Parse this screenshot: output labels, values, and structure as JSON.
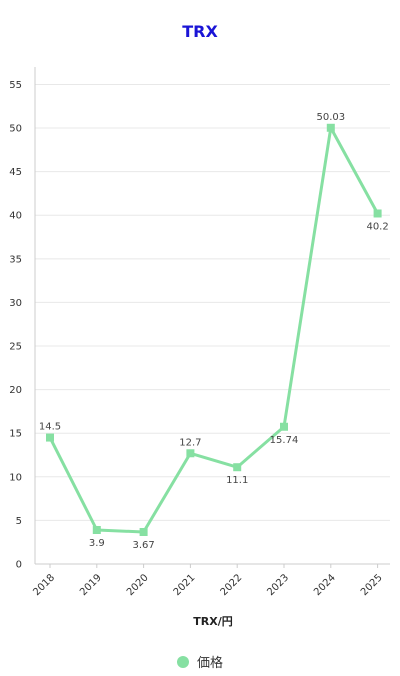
{
  "chart_data": {
    "type": "line",
    "title": "TRX",
    "xlabel": "TRX/円",
    "ylabel": "",
    "categories": [
      "2018",
      "2019",
      "2020",
      "2021",
      "2022",
      "2023",
      "2024",
      "2025"
    ],
    "series": [
      {
        "name": "価格",
        "values": [
          14.5,
          3.9,
          3.67,
          12.7,
          11.1,
          15.74,
          50.03,
          40.2
        ],
        "labels": [
          "14.5",
          "3.9",
          "3.67",
          "12.7",
          "11.1",
          "15.74",
          "50.03",
          "40.2"
        ],
        "color": "#86e0a2"
      }
    ],
    "ylim": [
      0,
      57
    ],
    "yticks": [
      0,
      5,
      10,
      15,
      20,
      25,
      30,
      35,
      40,
      45,
      50,
      55
    ],
    "grid": true,
    "legend_position": "bottom"
  },
  "colors": {
    "title": "#1a14d6",
    "series": "#86e0a2",
    "grid": "#e8e8e8",
    "axis": "#cccccc"
  }
}
